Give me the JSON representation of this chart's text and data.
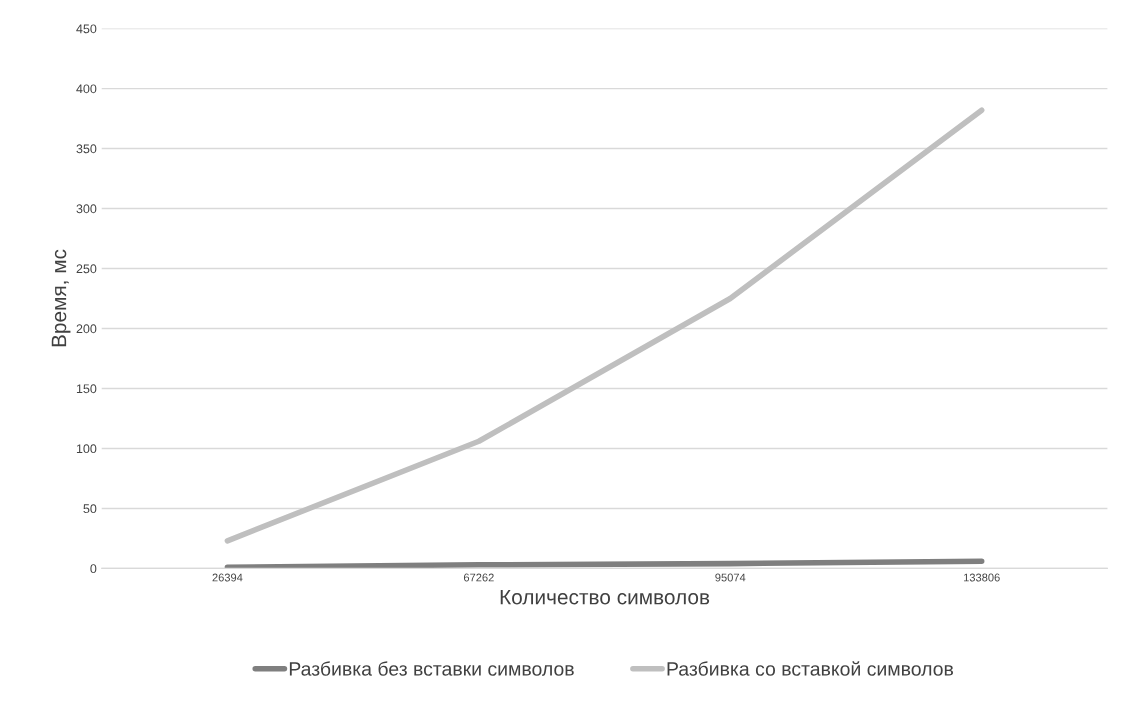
{
  "chart_data": {
    "type": "line",
    "xlabel": "Количество символов",
    "ylabel": "Время, мс",
    "categories": [
      "26394",
      "67262",
      "95074",
      "133806"
    ],
    "series": [
      {
        "name": "Разбивка без вставки символов",
        "color": "#7f7f7f",
        "values": [
          1,
          3,
          4,
          6
        ]
      },
      {
        "name": "Разбивка со вставкой символов",
        "color": "#bfbfbf",
        "values": [
          23,
          106,
          225,
          382
        ]
      }
    ],
    "ylim": [
      0,
      450
    ],
    "yticks": [
      0,
      50,
      100,
      150,
      200,
      250,
      300,
      350,
      400,
      450
    ],
    "grid": "y",
    "legend": "bottom",
    "marker": "none",
    "line_style": "solid"
  }
}
